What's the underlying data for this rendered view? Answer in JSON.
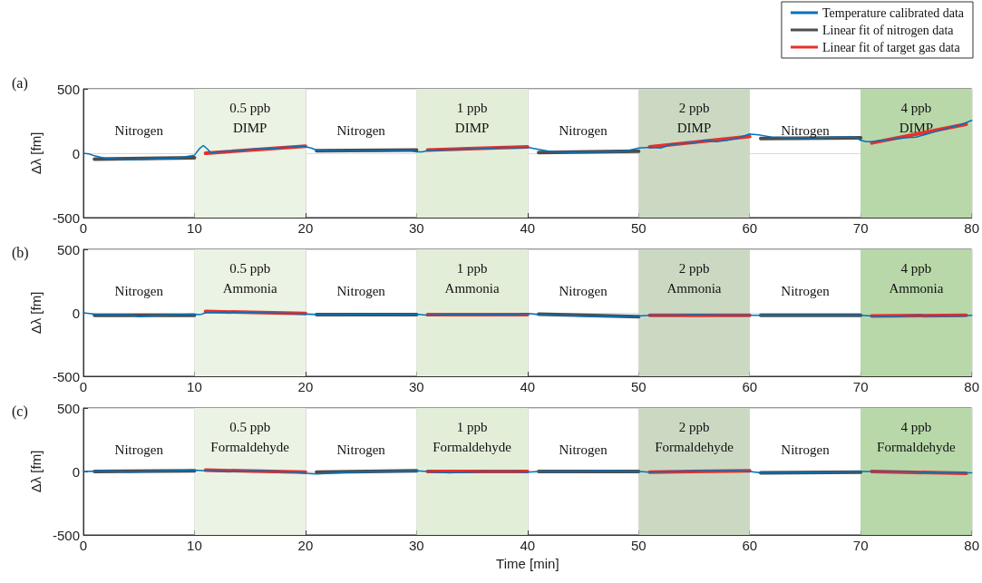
{
  "chart_data": [
    {
      "type": "line",
      "title": "(a)",
      "ylabel": "Δλ [fm]",
      "xlim": [
        0,
        80
      ],
      "xticks": [
        0,
        10,
        20,
        30,
        40,
        50,
        60,
        70,
        80
      ],
      "ylim": [
        -500,
        500
      ],
      "yticks": [
        -500,
        0,
        500
      ],
      "grid": true,
      "legend": "top right",
      "marker": "none",
      "line_style": "solid",
      "annotations": [
        "Nitrogen",
        "Nitrogen",
        "Nitrogen",
        "Nitrogen"
      ],
      "bands": [
        {
          "axis": "x",
          "from": 10,
          "to": 20,
          "label": "0.5 ppb\nDIMP",
          "color": "#ebf3e4"
        },
        {
          "axis": "x",
          "from": 30,
          "to": 40,
          "label": "1 ppb\nDIMP",
          "color": "#e3eed9"
        },
        {
          "axis": "x",
          "from": 50,
          "to": 60,
          "label": "2 ppb\nDIMP",
          "color": "#ccd9c2"
        },
        {
          "axis": "x",
          "from": 70,
          "to": 80,
          "label": "4 ppb\nDIMP",
          "color": "#b8d8a9"
        }
      ],
      "series": [
        {
          "name": "Temperature calibrated data",
          "color": "#0072bd",
          "x": [
            0,
            0.5,
            1,
            2,
            3,
            4,
            5,
            6,
            7,
            8,
            9,
            9.7,
            10,
            10.5,
            10.8,
            11.2,
            11.5,
            12,
            13,
            14,
            15,
            16,
            17,
            18,
            19,
            19.8,
            20.5,
            21,
            22,
            24,
            26,
            28,
            29.5,
            30,
            30.5,
            31,
            32,
            34,
            36,
            38,
            39,
            40,
            41,
            42,
            44,
            46,
            48,
            49,
            50,
            51,
            52,
            53,
            55,
            56,
            57,
            58,
            59,
            60,
            61,
            62,
            64,
            66,
            68,
            69.5,
            70,
            70.5,
            71,
            72,
            74,
            75,
            76,
            77,
            78,
            79,
            80
          ],
          "values": [
            0,
            -5,
            -20,
            -40,
            -45,
            -50,
            -48,
            -45,
            -42,
            -40,
            -30,
            -20,
            -15,
            40,
            60,
            30,
            0,
            10,
            15,
            20,
            30,
            35,
            35,
            45,
            50,
            55,
            40,
            25,
            20,
            15,
            15,
            20,
            20,
            10,
            10,
            20,
            25,
            30,
            35,
            45,
            40,
            45,
            30,
            15,
            5,
            10,
            10,
            20,
            40,
            45,
            40,
            70,
            80,
            100,
            90,
            100,
            120,
            150,
            140,
            125,
            120,
            120,
            125,
            125,
            100,
            90,
            90,
            100,
            120,
            125,
            150,
            175,
            200,
            220,
            255
          ]
        },
        {
          "name": "Linear fit of nitrogen data",
          "color": "#4d4d4d",
          "x": [
            1,
            10,
            15,
            21,
            30,
            35,
            41,
            50,
            55,
            61,
            70
          ],
          "values": [
            -45,
            -35,
            null,
            20,
            25,
            null,
            5,
            15,
            null,
            115,
            120
          ]
        },
        {
          "name": "Linear fit of target gas data",
          "color": "#e8302a",
          "x": [
            11,
            20,
            25,
            31,
            40,
            45,
            51,
            60,
            65,
            71,
            79.5
          ],
          "values": [
            0,
            55,
            null,
            25,
            50,
            null,
            50,
            130,
            null,
            80,
            225
          ]
        }
      ]
    },
    {
      "type": "line",
      "title": "(b)",
      "ylabel": "Δλ [fm]",
      "xlim": [
        0,
        80
      ],
      "xticks": [
        0,
        10,
        20,
        30,
        40,
        50,
        60,
        70,
        80
      ],
      "ylim": [
        -500,
        500
      ],
      "yticks": [
        -500,
        0,
        500
      ],
      "grid": true,
      "marker": "none",
      "line_style": "solid",
      "annotations": [
        "Nitrogen",
        "Nitrogen",
        "Nitrogen",
        "Nitrogen"
      ],
      "bands": [
        {
          "axis": "x",
          "from": 10,
          "to": 20,
          "label": "0.5 ppb\nAmmonia",
          "color": "#ebf3e4"
        },
        {
          "axis": "x",
          "from": 30,
          "to": 40,
          "label": "1 ppb\nAmmonia",
          "color": "#e3eed9"
        },
        {
          "axis": "x",
          "from": 50,
          "to": 60,
          "label": "2 ppb\nAmmonia",
          "color": "#ccd9c2"
        },
        {
          "axis": "x",
          "from": 70,
          "to": 80,
          "label": "4 ppb\nAmmonia",
          "color": "#b8d8a9"
        }
      ],
      "series": [
        {
          "color": "#0072bd",
          "x": [
            0,
            1,
            2,
            4,
            5,
            6,
            8,
            10,
            10.5,
            11,
            13,
            16,
            19,
            20,
            21,
            23,
            26,
            29,
            30,
            31,
            33,
            36,
            39,
            40,
            41,
            43,
            45,
            47,
            49,
            50,
            51,
            53,
            55,
            58,
            60,
            61,
            63,
            66,
            69,
            70,
            71,
            73,
            75,
            77,
            79,
            80
          ],
          "values": [
            0,
            -10,
            -15,
            -15,
            -30,
            -25,
            -15,
            -10,
            -15,
            0,
            5,
            0,
            -5,
            -10,
            -15,
            -15,
            -10,
            -15,
            -10,
            -20,
            -15,
            -15,
            -10,
            -5,
            -15,
            -20,
            -25,
            -30,
            -30,
            -25,
            -20,
            -20,
            -15,
            -20,
            -20,
            -20,
            -20,
            -20,
            -20,
            -20,
            -25,
            -30,
            -20,
            -25,
            -25,
            -20
          ]
        },
        {
          "color": "#4d4d4d",
          "x": [
            1,
            10,
            15,
            21,
            30,
            35,
            41,
            50,
            55,
            61,
            70
          ],
          "values": [
            -20,
            -20,
            null,
            -15,
            -15,
            null,
            -10,
            -30,
            null,
            -20,
            -20
          ]
        },
        {
          "color": "#e8302a",
          "x": [
            11,
            20,
            25,
            31,
            40,
            45,
            51,
            60,
            65,
            71,
            79.5
          ],
          "values": [
            10,
            -5,
            null,
            -15,
            -15,
            null,
            -20,
            -20,
            null,
            -25,
            -20
          ]
        }
      ]
    },
    {
      "type": "line",
      "title": "(c)",
      "xlabel": "Time [min]",
      "ylabel": "Δλ [fm]",
      "xlim": [
        0,
        80
      ],
      "xticks": [
        0,
        10,
        20,
        30,
        40,
        50,
        60,
        70,
        80
      ],
      "ylim": [
        -500,
        500
      ],
      "yticks": [
        -500,
        0,
        500
      ],
      "grid": true,
      "marker": "none",
      "line_style": "solid",
      "annotations": [
        "Nitrogen",
        "Nitrogen",
        "Nitrogen",
        "Nitrogen"
      ],
      "bands": [
        {
          "axis": "x",
          "from": 10,
          "to": 20,
          "label": "0.5 ppb\nFormaldehyde",
          "color": "#ebf3e4"
        },
        {
          "axis": "x",
          "from": 30,
          "to": 40,
          "label": "1 ppb\nFormaldehyde",
          "color": "#e3eed9"
        },
        {
          "axis": "x",
          "from": 50,
          "to": 60,
          "label": "2 ppb\nFormaldehyde",
          "color": "#ccd9c2"
        },
        {
          "axis": "x",
          "from": 70,
          "to": 80,
          "label": "4 ppb\nFormaldehyde",
          "color": "#b8d8a9"
        }
      ],
      "series": [
        {
          "color": "#0072bd",
          "x": [
            0,
            2,
            4,
            6,
            8,
            10,
            11,
            13,
            16,
            19,
            20,
            21,
            23,
            26,
            29,
            30,
            31,
            33,
            36,
            39,
            40,
            41,
            44,
            47,
            50,
            51,
            53,
            56,
            59,
            60,
            61,
            64,
            67,
            70,
            71,
            74,
            77,
            80
          ],
          "values": [
            0,
            5,
            -5,
            0,
            5,
            10,
            5,
            0,
            5,
            -5,
            -15,
            -20,
            -10,
            0,
            0,
            5,
            0,
            -10,
            0,
            0,
            -5,
            0,
            0,
            5,
            0,
            -5,
            0,
            5,
            5,
            0,
            -10,
            -10,
            -5,
            0,
            0,
            0,
            -10,
            -10
          ]
        },
        {
          "color": "#4d4d4d",
          "x": [
            1,
            10,
            15,
            21,
            30,
            35,
            41,
            50,
            55,
            61,
            70
          ],
          "values": [
            0,
            5,
            null,
            -5,
            5,
            null,
            0,
            0,
            null,
            -10,
            -5
          ]
        },
        {
          "color": "#e8302a",
          "x": [
            11,
            20,
            25,
            31,
            40,
            45,
            51,
            60,
            65,
            71,
            79.5
          ],
          "values": [
            10,
            -5,
            null,
            0,
            0,
            null,
            -5,
            5,
            null,
            0,
            -15
          ]
        }
      ]
    }
  ]
}
